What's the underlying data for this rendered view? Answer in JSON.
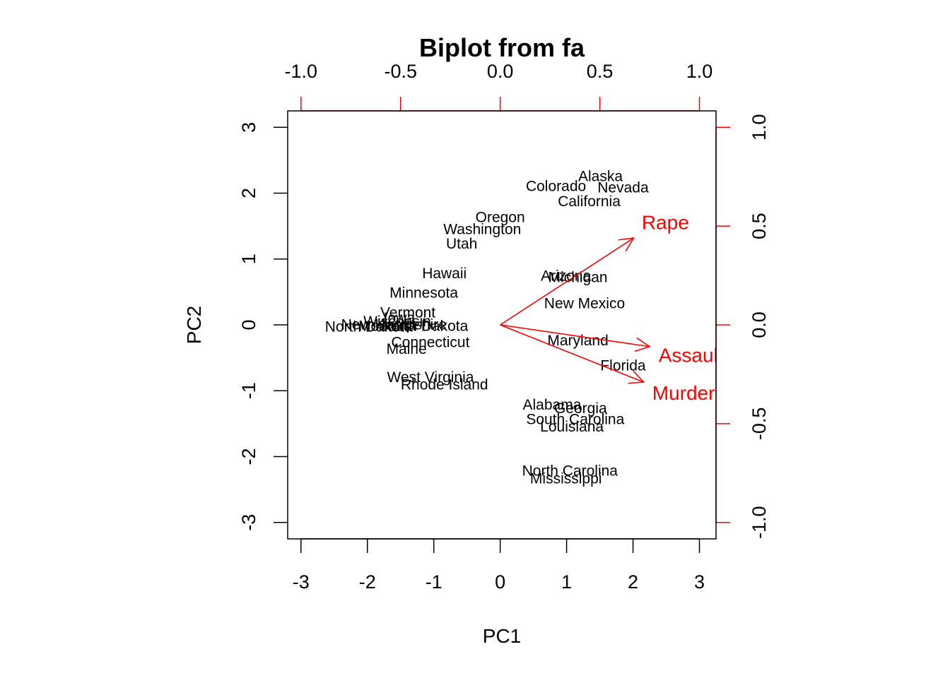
{
  "chart_data": {
    "type": "scatter",
    "title": "Biplot from fa",
    "xlabel": "PC1",
    "ylabel": "PC2",
    "xlim": [
      -3.2,
      3.25
    ],
    "ylim": [
      -3.25,
      3.25
    ],
    "x_ticks": [
      -3,
      -2,
      -1,
      0,
      1,
      2,
      3
    ],
    "y_ticks": [
      -3,
      -2,
      -1,
      0,
      1,
      2,
      3
    ],
    "top_axis_ticks": [
      -1.0,
      -0.5,
      0.0,
      0.5,
      1.0
    ],
    "right_axis_ticks": [
      -1.0,
      -0.5,
      0.0,
      0.5,
      1.0
    ],
    "loading_scale": 3.0,
    "loading_color": "#ff0000",
    "points": [
      {
        "label": "Alaska",
        "x": 1.51,
        "y": 2.24
      },
      {
        "label": "Colorado",
        "x": 0.84,
        "y": 2.09
      },
      {
        "label": "Nevada",
        "x": 1.85,
        "y": 2.07
      },
      {
        "label": "California",
        "x": 1.34,
        "y": 1.86
      },
      {
        "label": "Oregon",
        "x": 0.0,
        "y": 1.62
      },
      {
        "label": "Washington",
        "x": -0.27,
        "y": 1.44
      },
      {
        "label": "Utah",
        "x": -0.58,
        "y": 1.22
      },
      {
        "label": "Hawaii",
        "x": -0.84,
        "y": 0.77
      },
      {
        "label": "Arizona",
        "x": 0.99,
        "y": 0.73
      },
      {
        "label": "Michigan",
        "x": 1.17,
        "y": 0.71
      },
      {
        "label": "Minnesota",
        "x": -1.15,
        "y": 0.47
      },
      {
        "label": "New Mexico",
        "x": 1.27,
        "y": 0.31
      },
      {
        "label": "Vermont",
        "x": -1.39,
        "y": 0.17
      },
      {
        "label": "Iowa",
        "x": -1.52,
        "y": 0.09
      },
      {
        "label": "Wisconsin",
        "x": -1.55,
        "y": 0.04
      },
      {
        "label": "New Hampshire",
        "x": -1.6,
        "y": -0.01
      },
      {
        "label": "North Dakota",
        "x": -1.98,
        "y": -0.04
      },
      {
        "label": "South Dakota",
        "x": -1.16,
        "y": -0.03
      },
      {
        "label": "Montana",
        "x": -1.7,
        "y": -0.03
      },
      {
        "label": "Connecticut",
        "x": -1.05,
        "y": -0.28
      },
      {
        "label": "Maine",
        "x": -1.41,
        "y": -0.38
      },
      {
        "label": "Maryland",
        "x": 1.17,
        "y": -0.25
      },
      {
        "label": "Florida",
        "x": 1.85,
        "y": -0.63
      },
      {
        "label": "West Virginia",
        "x": -1.05,
        "y": -0.81
      },
      {
        "label": "Rhode Island",
        "x": -0.84,
        "y": -0.92
      },
      {
        "label": "Alabama",
        "x": 0.78,
        "y": -1.23
      },
      {
        "label": "Georgia",
        "x": 1.21,
        "y": -1.28
      },
      {
        "label": "South Carolina",
        "x": 1.13,
        "y": -1.45
      },
      {
        "label": "Louisiana",
        "x": 1.08,
        "y": -1.56
      },
      {
        "label": "North Carolina",
        "x": 1.05,
        "y": -2.23
      },
      {
        "label": "Mississippi",
        "x": 0.99,
        "y": -2.35
      }
    ],
    "loadings": [
      {
        "label": "Rape",
        "x": 0.67,
        "y": 0.44
      },
      {
        "label": "Assault",
        "x": 0.75,
        "y": -0.11
      },
      {
        "label": "Murder",
        "x": 0.72,
        "y": -0.29
      }
    ]
  }
}
